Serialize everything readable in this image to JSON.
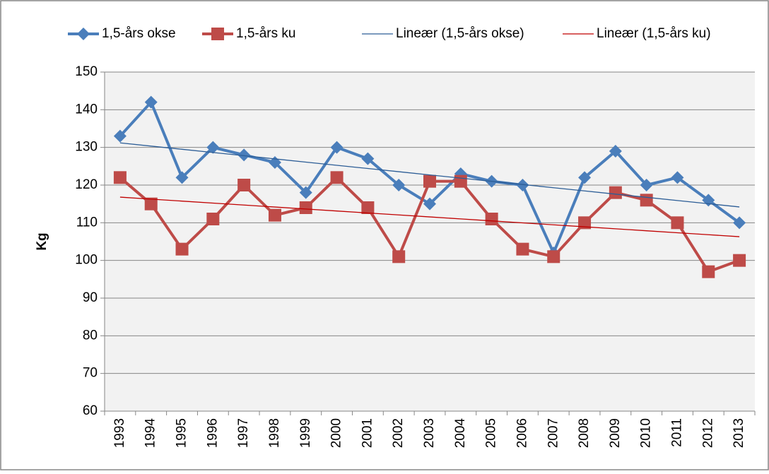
{
  "chart_data": {
    "type": "line",
    "y_label": "Kg",
    "categories": [
      "1993",
      "1994",
      "1995",
      "1996",
      "1997",
      "1998",
      "1999",
      "2000",
      "2001",
      "2002",
      "2003",
      "2004",
      "2005",
      "2006",
      "2007",
      "2008",
      "2009",
      "2010",
      "2011",
      "2012",
      "2013"
    ],
    "series": [
      {
        "name": "1,5-års okse",
        "color": "#4a7ebb",
        "marker": "diamond",
        "line_width": 4,
        "values": [
          133,
          142,
          122,
          130,
          128,
          126,
          118,
          130,
          127,
          120,
          115,
          123,
          121,
          120,
          102,
          122,
          129,
          120,
          122,
          116,
          110
        ]
      },
      {
        "name": "1,5-års ku",
        "color": "#be4b48",
        "marker": "square",
        "line_width": 4,
        "values": [
          122,
          115,
          103,
          111,
          120,
          112,
          114,
          122,
          114,
          101,
          121,
          121,
          111,
          103,
          101,
          110,
          118,
          116,
          110,
          97,
          100
        ]
      },
      {
        "name": "Lineær (1,5-års okse)",
        "color": "#2c5d96",
        "line_width": 1.3,
        "values": [
          131.2,
          130.35,
          129.5,
          128.65,
          127.8,
          126.95,
          126.1,
          125.25,
          124.4,
          123.55,
          122.7,
          121.85,
          121,
          120.15,
          119.3,
          118.45,
          117.6,
          116.75,
          115.9,
          115.05,
          114.2
        ]
      },
      {
        "name": "Lineær (1,5-års ku)",
        "color": "#c00000",
        "line_width": 1.3,
        "values": [
          116.8,
          116.275,
          115.75,
          115.225,
          114.7,
          114.175,
          113.65,
          113.125,
          112.6,
          112.075,
          111.55,
          111.025,
          110.5,
          109.975,
          109.45,
          108.925,
          108.4,
          107.875,
          107.35,
          106.825,
          106.3
        ]
      }
    ],
    "ylim": [
      60,
      150
    ],
    "yticks": [
      60,
      70,
      80,
      90,
      100,
      110,
      120,
      130,
      140,
      150
    ],
    "grid": true,
    "legend": "top"
  }
}
